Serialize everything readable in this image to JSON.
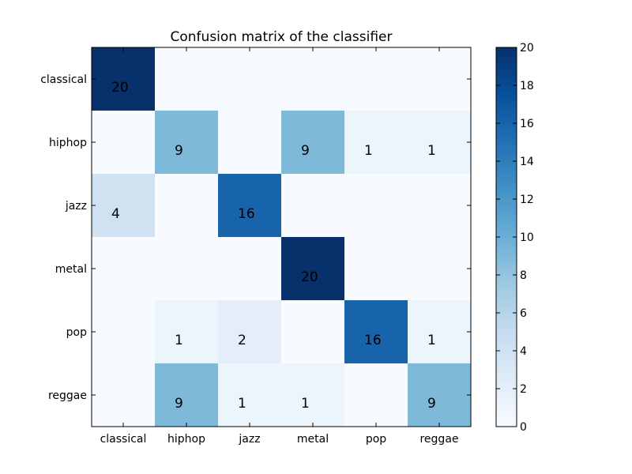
{
  "chart_data": {
    "type": "heatmap",
    "title": "Confusion matrix of the classifier",
    "row_labels": [
      "classical",
      "hiphop",
      "jazz",
      "metal",
      "pop",
      "reggae"
    ],
    "col_labels": [
      "classical",
      "hiphop",
      "jazz",
      "metal",
      "pop",
      "reggae"
    ],
    "values": [
      [
        20,
        0,
        0,
        0,
        0,
        0
      ],
      [
        0,
        9,
        0,
        9,
        1,
        1
      ],
      [
        4,
        0,
        16,
        0,
        0,
        0
      ],
      [
        0,
        0,
        0,
        20,
        0,
        0
      ],
      [
        0,
        1,
        2,
        0,
        16,
        1
      ],
      [
        0,
        9,
        1,
        1,
        0,
        9
      ]
    ],
    "colormap": "Blues",
    "vmin": 0,
    "vmax": 20,
    "colorbar_ticks": [
      0,
      2,
      4,
      6,
      8,
      10,
      12,
      14,
      16,
      18,
      20
    ]
  }
}
